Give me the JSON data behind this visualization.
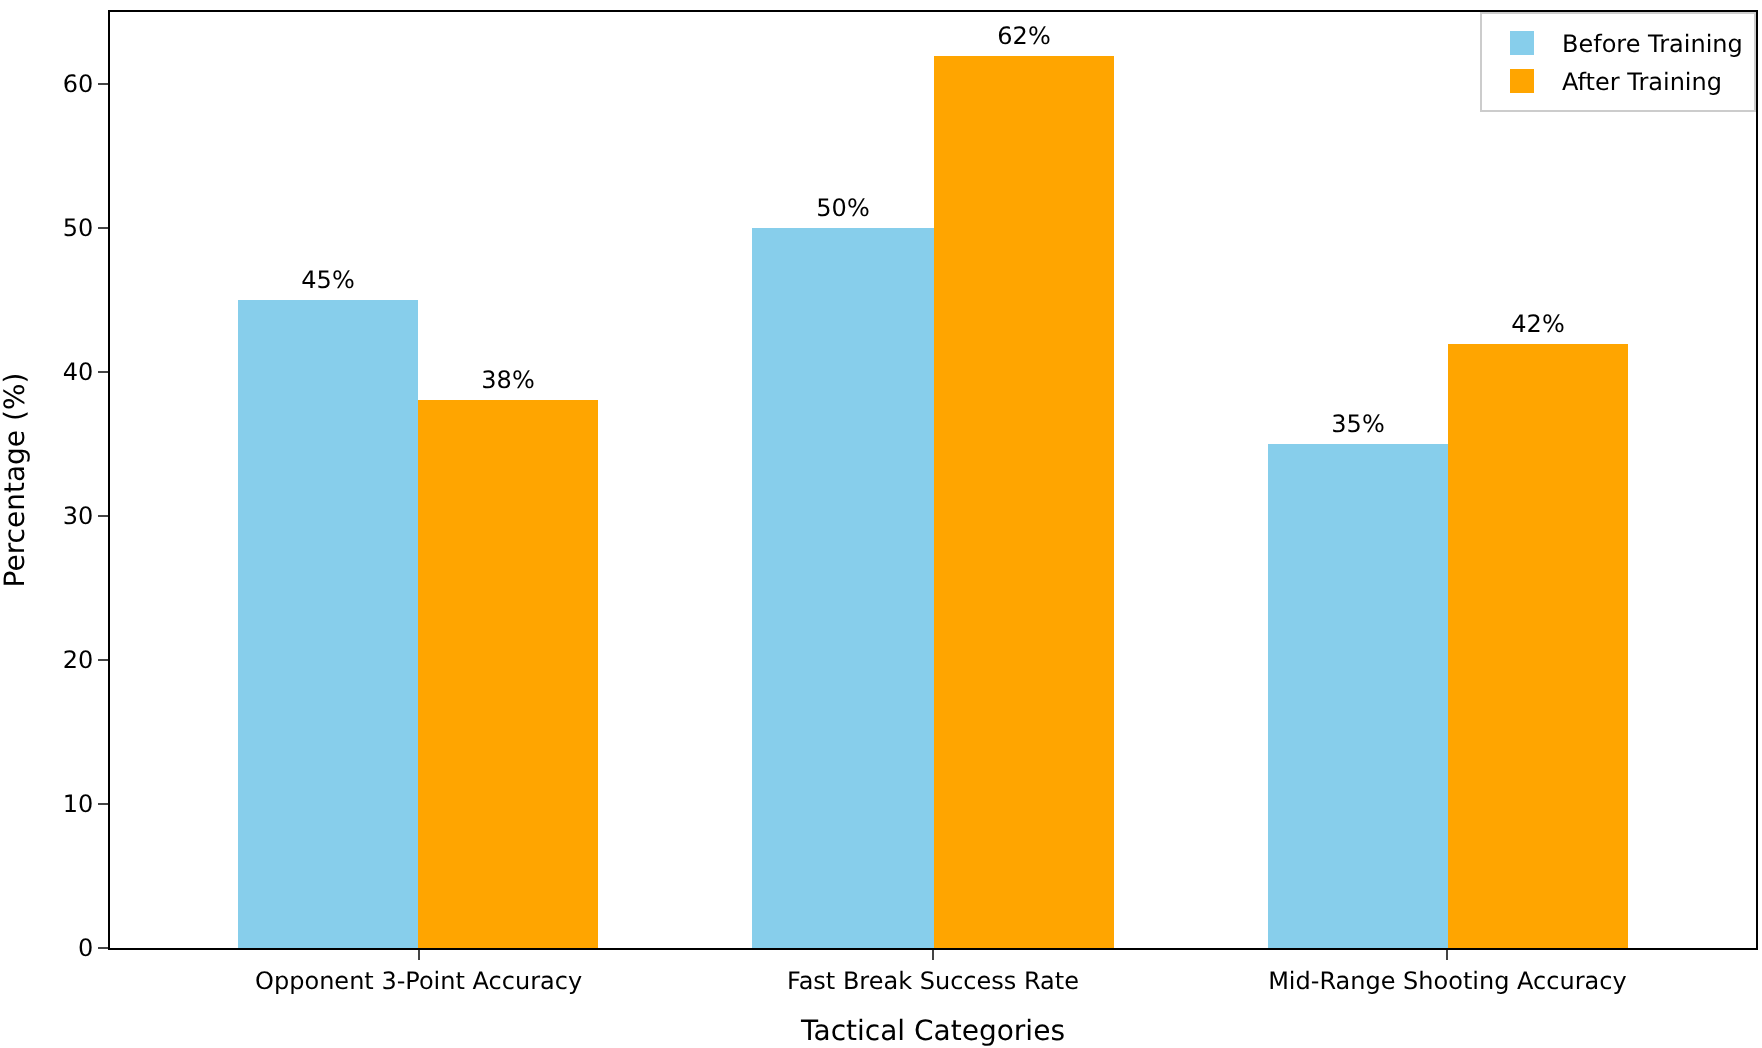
{
  "chart_data": {
    "type": "bar",
    "xlabel": "Tactical Categories",
    "ylabel": "Percentage (%)",
    "categories": [
      "Opponent 3-Point Accuracy",
      "Fast Break Success Rate",
      "Mid-Range Shooting Accuracy"
    ],
    "series": [
      {
        "name": "Before Training",
        "color": "#87ceeb",
        "values": [
          45,
          50,
          35
        ],
        "value_labels": [
          "45%",
          "50%",
          "35%"
        ]
      },
      {
        "name": "After Training",
        "color": "#ffa500",
        "values": [
          38,
          62,
          42
        ],
        "value_labels": [
          "38%",
          "62%",
          "42%"
        ]
      }
    ],
    "ylim": [
      0,
      65
    ],
    "yticks": [
      0,
      10,
      20,
      30,
      40,
      50,
      60
    ],
    "legend": "top right"
  }
}
